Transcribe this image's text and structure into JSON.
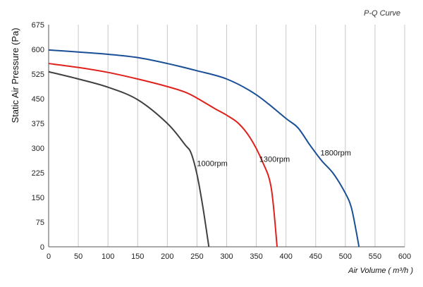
{
  "chart_data": {
    "type": "line",
    "title": "P-Q Curve",
    "xlabel": "Air Volume ( m³/h )",
    "ylabel": "Static Air Pressure  (Pa)",
    "xlim": [
      0,
      600
    ],
    "ylim": [
      0,
      675
    ],
    "xticks": [
      0,
      50,
      100,
      150,
      200,
      250,
      300,
      350,
      400,
      450,
      500,
      550,
      600
    ],
    "yticks": [
      0,
      75,
      150,
      225,
      300,
      375,
      450,
      525,
      600,
      675
    ],
    "grid": "vertical",
    "colors": {
      "1000rpm": "#404040",
      "1300rpm": "#e0201b",
      "1800rpm": "#1a4f96",
      "grid": "#c8c8c8",
      "axis": "#555555"
    },
    "series": [
      {
        "name": "1000rpm",
        "label_at": [
          250,
          245
        ],
        "points": [
          [
            0,
            532
          ],
          [
            50,
            510
          ],
          [
            100,
            485
          ],
          [
            150,
            447
          ],
          [
            200,
            375
          ],
          [
            230,
            310
          ],
          [
            240,
            285
          ],
          [
            250,
            220
          ],
          [
            260,
            120
          ],
          [
            270,
            0
          ]
        ]
      },
      {
        "name": "1300rpm",
        "label_at": [
          355,
          258
        ],
        "points": [
          [
            0,
            557
          ],
          [
            50,
            545
          ],
          [
            100,
            530
          ],
          [
            150,
            510
          ],
          [
            200,
            487
          ],
          [
            230,
            470
          ],
          [
            250,
            452
          ],
          [
            280,
            420
          ],
          [
            300,
            400
          ],
          [
            320,
            375
          ],
          [
            340,
            330
          ],
          [
            360,
            260
          ],
          [
            375,
            180
          ],
          [
            385,
            0
          ]
        ]
      },
      {
        "name": "1800rpm",
        "label_at": [
          458,
          278
        ],
        "points": [
          [
            0,
            598
          ],
          [
            50,
            592
          ],
          [
            100,
            585
          ],
          [
            150,
            575
          ],
          [
            200,
            557
          ],
          [
            250,
            535
          ],
          [
            300,
            510
          ],
          [
            350,
            462
          ],
          [
            400,
            390
          ],
          [
            420,
            362
          ],
          [
            440,
            310
          ],
          [
            460,
            262
          ],
          [
            480,
            222
          ],
          [
            500,
            163
          ],
          [
            510,
            120
          ],
          [
            518,
            50
          ],
          [
            523,
            0
          ]
        ]
      }
    ]
  }
}
